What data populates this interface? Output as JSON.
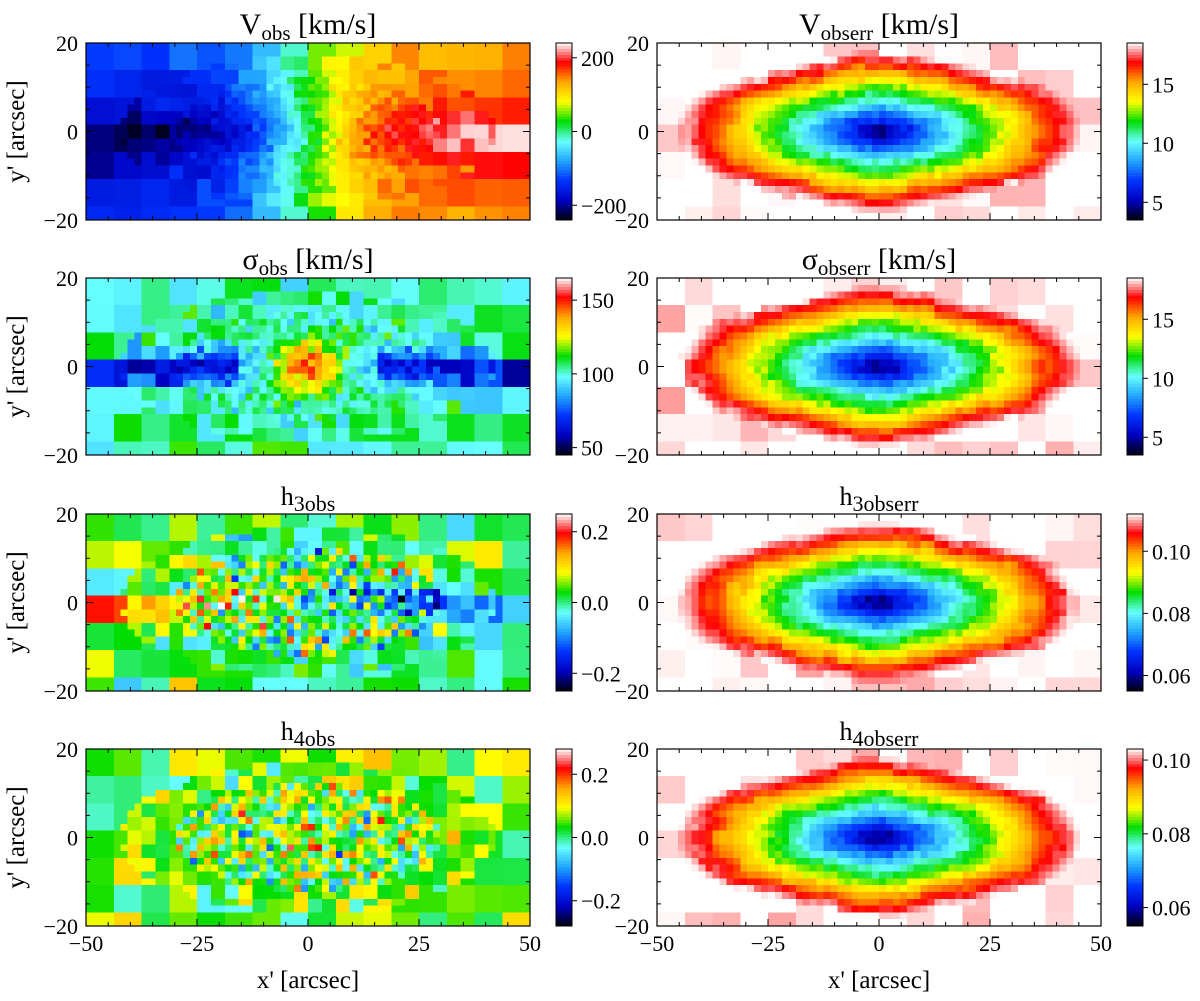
{
  "figure": {
    "xlabel": "x' [arcsec]",
    "ylabel": "y' [arcsec]",
    "xticks": [
      "−50",
      "−25",
      "0",
      "25",
      "50"
    ],
    "yticks": [
      "20",
      "0",
      "−20"
    ],
    "colormap": [
      "#000010",
      "#0000c0",
      "#0033ff",
      "#22a6ff",
      "#66ffff",
      "#00dd00",
      "#ffff00",
      "#ffaa00",
      "#ff0000",
      "#ffffff"
    ]
  },
  "chart_data": [
    {
      "type": "heatmap",
      "field": "velocity",
      "title": {
        "base": "V",
        "sub": "obs",
        "unit": " [km/s]"
      },
      "xlim": [
        -50,
        50
      ],
      "ylim": [
        -20,
        20
      ],
      "colorbar": {
        "min": -240,
        "max": 240,
        "ticks": [
          {
            "value": 200,
            "label": "200"
          },
          {
            "value": 0,
            "label": "0"
          },
          {
            "value": -200,
            "label": "−200"
          }
        ]
      }
    },
    {
      "type": "heatmap",
      "field": "error",
      "title": {
        "base": "V",
        "sub": "obserr",
        "unit": " [km/s]"
      },
      "xlim": [
        -50,
        50
      ],
      "ylim": [
        -20,
        20
      ],
      "colorbar": {
        "min": 3.5,
        "max": 18.5,
        "ticks": [
          {
            "value": 15,
            "label": "15"
          },
          {
            "value": 10,
            "label": "10"
          },
          {
            "value": 5,
            "label": "5"
          }
        ]
      }
    },
    {
      "type": "heatmap",
      "field": "dispersion",
      "title": {
        "base": "σ",
        "sub": "obs",
        "unit": " [km/s]"
      },
      "xlim": [
        -50,
        50
      ],
      "ylim": [
        -20,
        20
      ],
      "colorbar": {
        "min": 45,
        "max": 165,
        "ticks": [
          {
            "value": 150,
            "label": "150"
          },
          {
            "value": 100,
            "label": "100"
          },
          {
            "value": 50,
            "label": "50"
          }
        ]
      }
    },
    {
      "type": "heatmap",
      "field": "error",
      "title": {
        "base": "σ",
        "sub": "obserr",
        "unit": " [km/s]"
      },
      "xlim": [
        -50,
        50
      ],
      "ylim": [
        -20,
        20
      ],
      "colorbar": {
        "min": 3.5,
        "max": 18.5,
        "ticks": [
          {
            "value": 15,
            "label": "15"
          },
          {
            "value": 10,
            "label": "10"
          },
          {
            "value": 5,
            "label": "5"
          }
        ]
      }
    },
    {
      "type": "heatmap",
      "field": "h3",
      "title": {
        "base": "h",
        "sub": "3obs",
        "unit": ""
      },
      "xlim": [
        -50,
        50
      ],
      "ylim": [
        -20,
        20
      ],
      "colorbar": {
        "min": -0.25,
        "max": 0.25,
        "ticks": [
          {
            "value": 0.2,
            "label": "0.2"
          },
          {
            "value": 0.0,
            "label": "0.0"
          },
          {
            "value": -0.2,
            "label": "−0.2"
          }
        ]
      }
    },
    {
      "type": "heatmap",
      "field": "error",
      "title": {
        "base": "h",
        "sub": "3obserr",
        "unit": ""
      },
      "xlim": [
        -50,
        50
      ],
      "ylim": [
        -20,
        20
      ],
      "colorbar": {
        "min": 0.055,
        "max": 0.112,
        "ticks": [
          {
            "value": 0.1,
            "label": "0.10"
          },
          {
            "value": 0.08,
            "label": "0.08"
          },
          {
            "value": 0.06,
            "label": "0.06"
          }
        ]
      }
    },
    {
      "type": "heatmap",
      "field": "h4",
      "title": {
        "base": "h",
        "sub": "4obs",
        "unit": ""
      },
      "xlim": [
        -50,
        50
      ],
      "ylim": [
        -20,
        20
      ],
      "colorbar": {
        "min": -0.28,
        "max": 0.28,
        "ticks": [
          {
            "value": 0.2,
            "label": "0.2"
          },
          {
            "value": 0.0,
            "label": "0.0"
          },
          {
            "value": -0.2,
            "label": "−0.2"
          }
        ]
      }
    },
    {
      "type": "heatmap",
      "field": "error",
      "title": {
        "base": "h",
        "sub": "4obserr",
        "unit": ""
      },
      "xlim": [
        -50,
        50
      ],
      "ylim": [
        -20,
        20
      ],
      "colorbar": {
        "min": 0.055,
        "max": 0.103,
        "ticks": [
          {
            "value": 0.1,
            "label": "0.10"
          },
          {
            "value": 0.08,
            "label": "0.08"
          },
          {
            "value": 0.06,
            "label": "0.06"
          }
        ]
      }
    }
  ]
}
